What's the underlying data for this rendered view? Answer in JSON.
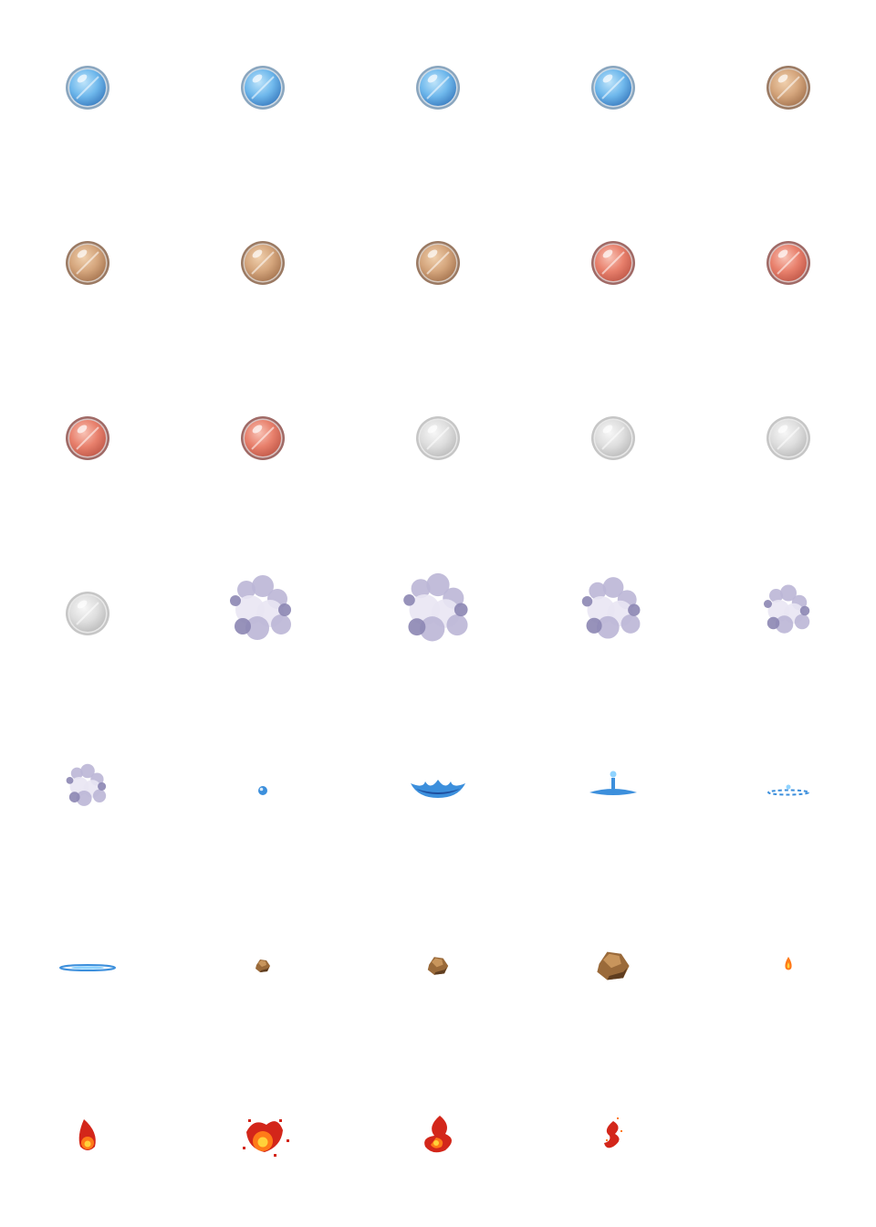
{
  "sprite_sheet": {
    "columns": 5,
    "rows": 7,
    "frames": [
      {
        "kind": "orb",
        "variant": "water",
        "icon": "water-orb-icon"
      },
      {
        "kind": "orb",
        "variant": "water",
        "icon": "water-orb-icon"
      },
      {
        "kind": "orb",
        "variant": "water",
        "icon": "water-orb-icon"
      },
      {
        "kind": "orb",
        "variant": "water",
        "icon": "water-orb-icon"
      },
      {
        "kind": "orb",
        "variant": "earth",
        "icon": "earth-orb-icon"
      },
      {
        "kind": "orb",
        "variant": "earth",
        "icon": "earth-orb-icon"
      },
      {
        "kind": "orb",
        "variant": "earth",
        "icon": "earth-orb-icon"
      },
      {
        "kind": "orb",
        "variant": "earth",
        "icon": "earth-orb-icon"
      },
      {
        "kind": "orb",
        "variant": "fire",
        "icon": "fire-orb-icon"
      },
      {
        "kind": "orb",
        "variant": "fire",
        "icon": "fire-orb-icon"
      },
      {
        "kind": "orb",
        "variant": "fire",
        "icon": "fire-orb-icon"
      },
      {
        "kind": "orb",
        "variant": "fire",
        "icon": "fire-orb-icon"
      },
      {
        "kind": "orb",
        "variant": "air",
        "icon": "air-orb-icon"
      },
      {
        "kind": "orb",
        "variant": "air",
        "icon": "air-orb-icon"
      },
      {
        "kind": "orb",
        "variant": "air",
        "icon": "air-orb-icon"
      },
      {
        "kind": "orb",
        "variant": "air",
        "icon": "air-orb-icon"
      },
      {
        "kind": "smoke",
        "stage": 1,
        "icon": "smoke-cloud-icon"
      },
      {
        "kind": "smoke",
        "stage": 2,
        "icon": "smoke-cloud-icon"
      },
      {
        "kind": "smoke",
        "stage": 3,
        "icon": "smoke-cloud-icon"
      },
      {
        "kind": "smoke",
        "stage": 4,
        "icon": "smoke-cloud-icon"
      },
      {
        "kind": "smoke",
        "stage": 5,
        "icon": "smoke-cloud-icon"
      },
      {
        "kind": "splash",
        "stage": 1,
        "icon": "water-droplet-icon"
      },
      {
        "kind": "splash",
        "stage": 2,
        "icon": "water-splash-icon"
      },
      {
        "kind": "splash",
        "stage": 3,
        "icon": "water-splash-icon"
      },
      {
        "kind": "splash",
        "stage": 4,
        "icon": "water-ripple-icon"
      },
      {
        "kind": "splash",
        "stage": 5,
        "icon": "water-ripple-icon"
      },
      {
        "kind": "rock",
        "stage": 1,
        "icon": "rock-icon"
      },
      {
        "kind": "rock",
        "stage": 2,
        "icon": "rock-icon"
      },
      {
        "kind": "rock",
        "stage": 3,
        "icon": "rock-icon"
      },
      {
        "kind": "flame",
        "stage": 1,
        "icon": "flame-icon"
      },
      {
        "kind": "flame",
        "stage": 2,
        "icon": "flame-icon"
      },
      {
        "kind": "flame",
        "stage": 3,
        "icon": "flame-icon"
      },
      {
        "kind": "flame",
        "stage": 4,
        "icon": "flame-icon"
      },
      {
        "kind": "flame",
        "stage": 5,
        "icon": "flame-icon"
      }
    ]
  },
  "colors": {
    "water": {
      "light": "#bfe4fa",
      "mid": "#6fb8ec",
      "dark": "#3d7fc2",
      "rim": "#8aa6bf"
    },
    "earth": {
      "light": "#f0d0ae",
      "mid": "#d4a57c",
      "dark": "#a87752",
      "rim": "#9b7a63"
    },
    "fire": {
      "light": "#f8c3b6",
      "mid": "#e8806c",
      "dark": "#c25a4a",
      "rim": "#a06a66"
    },
    "air": {
      "light": "#f7f7f7",
      "mid": "#dedede",
      "dark": "#bdbdbd",
      "rim": "#c6c6c6"
    },
    "smoke": {
      "light": "#e9e6f3",
      "mid": "#bbb6d6",
      "dark": "#8c86b2"
    },
    "splash": {
      "light": "#8fd3ff",
      "mid": "#3c8fdc",
      "dark": "#1e4f9f"
    },
    "rock": {
      "light": "#c8955c",
      "mid": "#9a6a3a",
      "dark": "#5f3d1f"
    },
    "flame": {
      "light": "#ffd23a",
      "mid": "#ff7a18",
      "dark": "#d3261a"
    }
  }
}
